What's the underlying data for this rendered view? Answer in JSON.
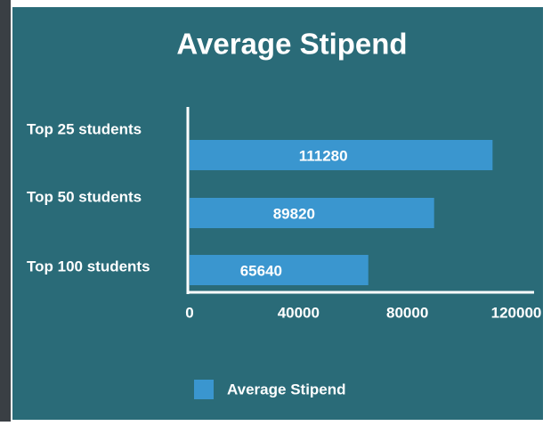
{
  "chart_data": {
    "type": "bar",
    "orientation": "horizontal",
    "title": "Average Stipend",
    "categories": [
      "Top 25 students",
      "Top 50 students",
      "Top 100 students"
    ],
    "series": [
      {
        "name": "Average Stipend",
        "color": "#3a96cf",
        "values": [
          111280,
          89820,
          65640
        ]
      }
    ],
    "xlim": [
      0,
      120000
    ],
    "xticks": [
      0,
      40000,
      80000,
      120000
    ],
    "legend": "bottom"
  }
}
